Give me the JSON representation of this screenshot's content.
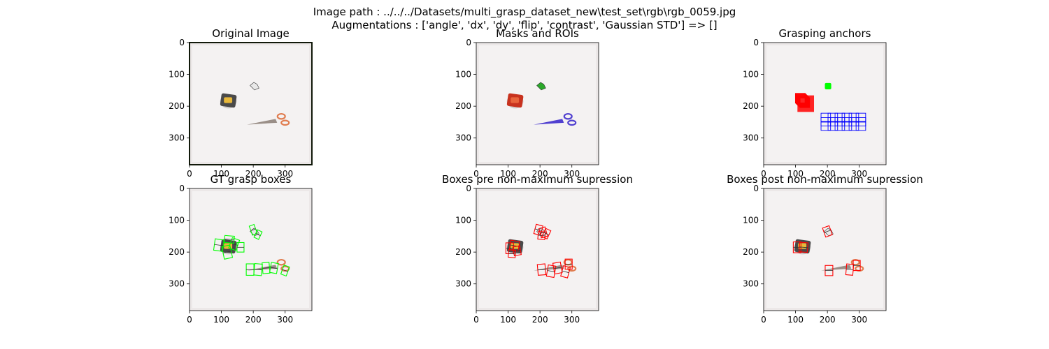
{
  "figure": {
    "suptitle_line1": "Image path : ../../../Datasets/multi_grasp_dataset_new\\test_set\\rgb\\rgb_0059.jpg",
    "suptitle_line2": "Augmentations : ['angle', 'dx', 'dy', 'flip', 'contrast', 'Gaussian STD'] => []"
  },
  "chart_data": [
    {
      "type": "image",
      "title": "Original Image",
      "xticks": [
        0,
        100,
        200,
        300
      ],
      "yticks": [
        0,
        100,
        200,
        300
      ],
      "xlim": [
        0,
        384
      ],
      "ylim": [
        384,
        0
      ],
      "content": "original"
    },
    {
      "type": "image",
      "title": "Masks and ROIs",
      "xticks": [
        0,
        100,
        200,
        300
      ],
      "yticks": [
        0,
        100,
        200,
        300
      ],
      "xlim": [
        0,
        384
      ],
      "ylim": [
        384,
        0
      ],
      "content": "masks"
    },
    {
      "type": "image",
      "title": "Grasping anchors",
      "xticks": [
        0,
        100,
        200,
        300
      ],
      "yticks": [
        0,
        100,
        200,
        300
      ],
      "xlim": [
        0,
        384
      ],
      "ylim": [
        384,
        0
      ],
      "content": "anchors"
    },
    {
      "type": "image",
      "title": "GT grasp boxes",
      "xticks": [
        0,
        100,
        200,
        300
      ],
      "yticks": [
        0,
        100,
        200,
        300
      ],
      "xlim": [
        0,
        384
      ],
      "ylim": [
        384,
        0
      ],
      "content": "gt",
      "box_color": "#00ff00",
      "boxes": [
        {
          "cx": 92,
          "cy": 178,
          "w": 28,
          "h": 36,
          "a": 8
        },
        {
          "cx": 118,
          "cy": 200,
          "w": 26,
          "h": 40,
          "a": -12
        },
        {
          "cx": 140,
          "cy": 175,
          "w": 24,
          "h": 34,
          "a": 20
        },
        {
          "cx": 160,
          "cy": 185,
          "w": 22,
          "h": 30,
          "a": 0
        },
        {
          "cx": 125,
          "cy": 160,
          "w": 30,
          "h": 22,
          "a": 5
        },
        {
          "cx": 200,
          "cy": 130,
          "w": 16,
          "h": 30,
          "a": -20
        },
        {
          "cx": 215,
          "cy": 145,
          "w": 16,
          "h": 26,
          "a": 25
        },
        {
          "cx": 190,
          "cy": 255,
          "w": 24,
          "h": 36,
          "a": 0
        },
        {
          "cx": 215,
          "cy": 255,
          "w": 24,
          "h": 36,
          "a": 5
        },
        {
          "cx": 240,
          "cy": 250,
          "w": 22,
          "h": 34,
          "a": -5
        },
        {
          "cx": 265,
          "cy": 250,
          "w": 22,
          "h": 32,
          "a": 10
        },
        {
          "cx": 300,
          "cy": 258,
          "w": 18,
          "h": 30,
          "a": 20
        }
      ]
    },
    {
      "type": "image",
      "title": "Boxes pre non-maximum supression",
      "xticks": [
        0,
        100,
        200,
        300
      ],
      "yticks": [
        0,
        100,
        200,
        300
      ],
      "xlim": [
        0,
        384
      ],
      "ylim": [
        384,
        0
      ],
      "content": "pre",
      "box_color": "#ff0000",
      "boxes": [
        {
          "cx": 105,
          "cy": 188,
          "w": 24,
          "h": 34,
          "a": 0
        },
        {
          "cx": 120,
          "cy": 180,
          "w": 28,
          "h": 30,
          "a": 10
        },
        {
          "cx": 128,
          "cy": 196,
          "w": 22,
          "h": 28,
          "a": -10
        },
        {
          "cx": 112,
          "cy": 205,
          "w": 22,
          "h": 24,
          "a": 5
        },
        {
          "cx": 195,
          "cy": 130,
          "w": 22,
          "h": 30,
          "a": 15
        },
        {
          "cx": 210,
          "cy": 138,
          "w": 20,
          "h": 30,
          "a": -15
        },
        {
          "cx": 205,
          "cy": 148,
          "w": 22,
          "h": 24,
          "a": 5
        },
        {
          "cx": 220,
          "cy": 142,
          "w": 18,
          "h": 28,
          "a": 25
        },
        {
          "cx": 205,
          "cy": 255,
          "w": 24,
          "h": 34,
          "a": -5
        },
        {
          "cx": 235,
          "cy": 260,
          "w": 24,
          "h": 36,
          "a": 10
        },
        {
          "cx": 255,
          "cy": 250,
          "w": 24,
          "h": 34,
          "a": -10
        },
        {
          "cx": 280,
          "cy": 262,
          "w": 22,
          "h": 34,
          "a": 15
        },
        {
          "cx": 290,
          "cy": 238,
          "w": 22,
          "h": 32,
          "a": 0
        }
      ]
    },
    {
      "type": "image",
      "title": "Boxes post non-maximum supression",
      "xticks": [
        0,
        100,
        200,
        300
      ],
      "yticks": [
        0,
        100,
        200,
        300
      ],
      "xlim": [
        0,
        384
      ],
      "ylim": [
        384,
        0
      ],
      "content": "post",
      "box_color": "#ff0000",
      "boxes": [
        {
          "cx": 105,
          "cy": 185,
          "w": 24,
          "h": 34,
          "a": 0
        },
        {
          "cx": 125,
          "cy": 185,
          "w": 26,
          "h": 30,
          "a": 5
        },
        {
          "cx": 200,
          "cy": 135,
          "w": 22,
          "h": 30,
          "a": -20
        },
        {
          "cx": 205,
          "cy": 258,
          "w": 24,
          "h": 32,
          "a": 0
        },
        {
          "cx": 270,
          "cy": 255,
          "w": 22,
          "h": 34,
          "a": 5
        },
        {
          "cx": 292,
          "cy": 242,
          "w": 22,
          "h": 32,
          "a": 0
        }
      ]
    }
  ]
}
